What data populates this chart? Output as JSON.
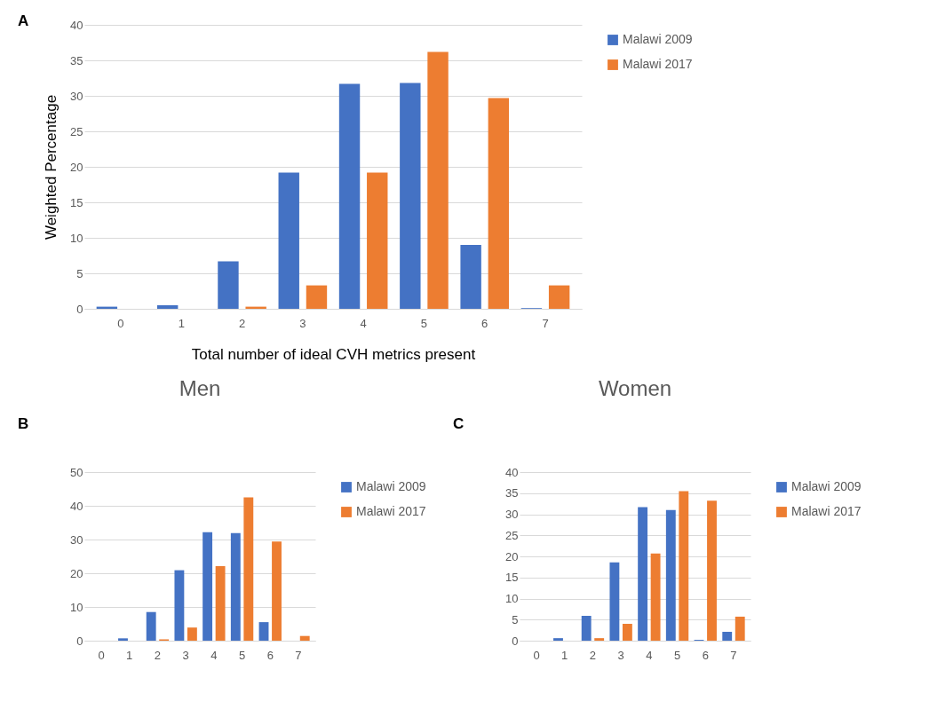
{
  "chart_data": [
    {
      "type": "bar",
      "annotations": [
        "A"
      ],
      "xlabel": "Total number of ideal CVH metrics present",
      "ylabel": "Weighted Percentage",
      "categories": [
        "0",
        "1",
        "2",
        "3",
        "4",
        "5",
        "6",
        "7"
      ],
      "series": [
        {
          "name": "Malawi 2009",
          "color": "#4472c4",
          "values": [
            0.3,
            0.5,
            6.7,
            19.2,
            31.7,
            31.8,
            9.0,
            0.1
          ]
        },
        {
          "name": "Malawi 2017",
          "color": "#ed7d31",
          "values": [
            0,
            0,
            0.3,
            3.3,
            19.2,
            36.2,
            29.7,
            3.3
          ]
        }
      ],
      "ylim": [
        0,
        40
      ],
      "yticks": [
        0,
        5,
        10,
        15,
        20,
        25,
        30,
        35,
        40
      ],
      "grid": "y",
      "legend": "right"
    },
    {
      "type": "bar",
      "title": "Men",
      "annotations": [
        "B"
      ],
      "categories": [
        "0",
        "1",
        "2",
        "3",
        "4",
        "5",
        "6",
        "7"
      ],
      "series": [
        {
          "name": "Malawi 2009",
          "color": "#4472c4",
          "values": [
            0,
            0.7,
            8.5,
            20.9,
            32.2,
            31.9,
            5.5,
            0
          ]
        },
        {
          "name": "Malawi 2017",
          "color": "#ed7d31",
          "values": [
            0,
            0,
            0.4,
            3.9,
            22.1,
            42.5,
            29.4,
            1.4
          ]
        }
      ],
      "ylim": [
        0,
        50
      ],
      "yticks": [
        0,
        10,
        20,
        30,
        40,
        50
      ],
      "grid": "y",
      "legend": "right"
    },
    {
      "type": "bar",
      "title": "Women",
      "annotations": [
        "C"
      ],
      "categories": [
        "0",
        "1",
        "2",
        "3",
        "4",
        "5",
        "6",
        "7"
      ],
      "series": [
        {
          "name": "Malawi 2009",
          "color": "#4472c4",
          "values": [
            0,
            0.6,
            5.9,
            18.6,
            31.7,
            31.0,
            0.2,
            2.1
          ]
        },
        {
          "name": "Malawi 2017",
          "color": "#ed7d31",
          "values": [
            0,
            0,
            0.6,
            4.0,
            20.7,
            35.5,
            33.2,
            5.7
          ]
        }
      ],
      "ylim": [
        0,
        40
      ],
      "yticks": [
        0,
        5,
        10,
        15,
        20,
        25,
        30,
        35,
        40
      ],
      "grid": "y",
      "legend": "right"
    }
  ]
}
